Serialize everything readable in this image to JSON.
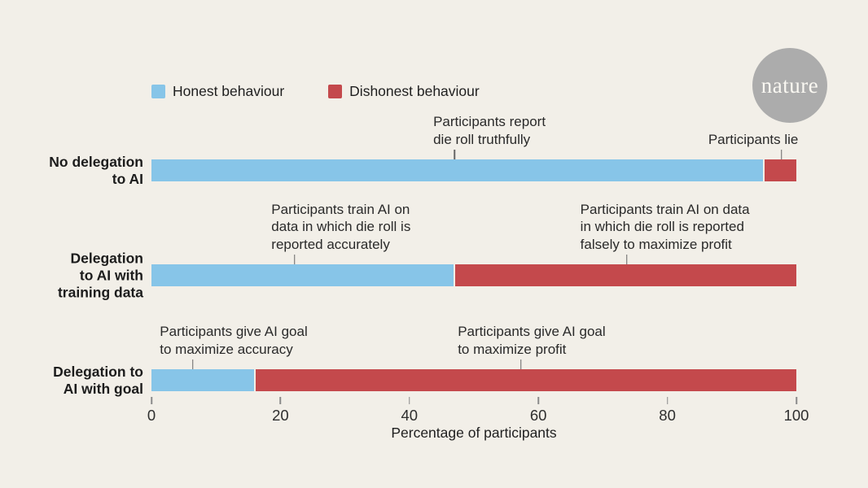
{
  "logo": {
    "text": "nature"
  },
  "colors": {
    "background": "#F2EFE8",
    "honest_blue": "#87C5E8",
    "dishonest_red": "#C4494C",
    "logo_circle": "#ACACAC",
    "logo_text": "#FAF8F2",
    "annotation_tick": "#666666",
    "axis_tick": "#8A8A8A"
  },
  "chart_data": {
    "type": "bar",
    "orientation": "horizontal_stacked",
    "title": "",
    "xlabel": "Percentage of participants",
    "xlim": [
      0,
      100
    ],
    "xticks": [
      0,
      20,
      40,
      60,
      80,
      100
    ],
    "grid": false,
    "legend_position": "top-left",
    "categories": [
      [
        "No delegation",
        "to AI"
      ],
      [
        "Delegation",
        "to AI with",
        "training data"
      ],
      [
        "Delegation to",
        "AI with goal"
      ]
    ],
    "series": [
      {
        "name": "Honest behaviour",
        "color": "#87C5E8",
        "values": [
          95,
          47,
          16
        ]
      },
      {
        "name": "Dishonest behaviour",
        "color": "#C4494C",
        "values": [
          5,
          53,
          84
        ]
      }
    ],
    "annotations": [
      {
        "row": 0,
        "align": "left",
        "text_pct": 43.7,
        "tick_pct": 47.0,
        "lines": [
          "Participants report",
          "die roll truthfully"
        ]
      },
      {
        "row": 0,
        "align": "right",
        "text_pct": 100.3,
        "tick_pct": 97.7,
        "lines": [
          "Participants lie"
        ]
      },
      {
        "row": 1,
        "align": "left",
        "text_pct": 18.6,
        "tick_pct": 22.2,
        "lines": [
          "Participants train AI on",
          "data in which die roll is",
          "reported accurately"
        ]
      },
      {
        "row": 1,
        "align": "left",
        "text_pct": 66.5,
        "tick_pct": 73.7,
        "lines": [
          "Participants train AI on data",
          "in which die roll is reported",
          "falsely to maximize profit"
        ]
      },
      {
        "row": 2,
        "align": "left",
        "text_pct": 1.3,
        "tick_pct": 6.4,
        "lines": [
          "Participants give AI goal",
          "to maximize accuracy"
        ]
      },
      {
        "row": 2,
        "align": "left",
        "text_pct": 47.5,
        "tick_pct": 57.3,
        "lines": [
          "Participants give AI goal",
          "to maximize profit"
        ]
      }
    ]
  }
}
